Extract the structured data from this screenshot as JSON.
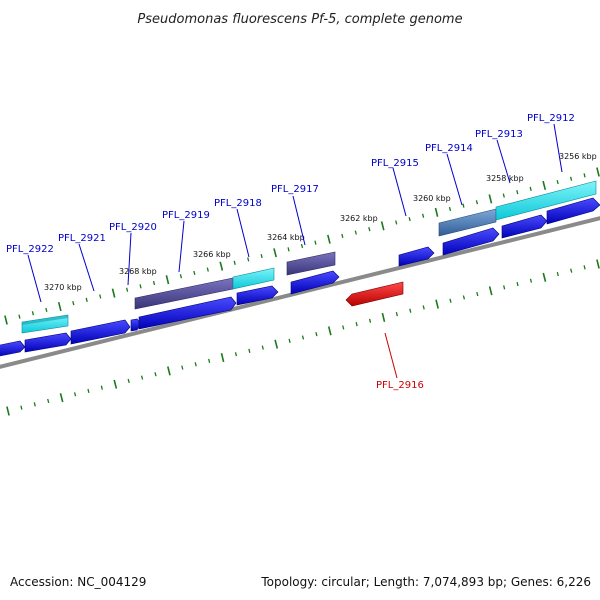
{
  "title": "Pseudomonas fluorescens Pf-5, complete genome",
  "footer": {
    "accession": "Accession: NC_004129",
    "topology": "Topology: circular; Length: 7,074,893 bp; Genes: 6,226"
  },
  "colors": {
    "forward_gene": "#1010e6",
    "reverse_gene": "#e01010",
    "cyan_feature": "#19e3f0",
    "purple_feature": "#55509a",
    "steel_feature": "#4a7db8",
    "backbone": "#8a8a8a",
    "tick": "#1a7a1a",
    "label_blue": "#0000cc",
    "label_red": "#cc0000"
  },
  "scale_labels": [
    "3256 kbp",
    "3258 kbp",
    "3260 kbp",
    "3262 kbp",
    "3264 kbp",
    "3266 kbp",
    "3268 kbp",
    "3270 kbp"
  ],
  "gene_labels": [
    {
      "name": "PFL_2912",
      "color": "#0000cc"
    },
    {
      "name": "PFL_2913",
      "color": "#0000cc"
    },
    {
      "name": "PFL_2914",
      "color": "#0000cc"
    },
    {
      "name": "PFL_2915",
      "color": "#0000cc"
    },
    {
      "name": "PFL_2916",
      "color": "#cc0000"
    },
    {
      "name": "PFL_2917",
      "color": "#0000cc"
    },
    {
      "name": "PFL_2918",
      "color": "#0000cc"
    },
    {
      "name": "PFL_2919",
      "color": "#0000cc"
    },
    {
      "name": "PFL_2920",
      "color": "#0000cc"
    },
    {
      "name": "PFL_2921",
      "color": "#0000cc"
    },
    {
      "name": "PFL_2922",
      "color": "#0000cc"
    }
  ]
}
